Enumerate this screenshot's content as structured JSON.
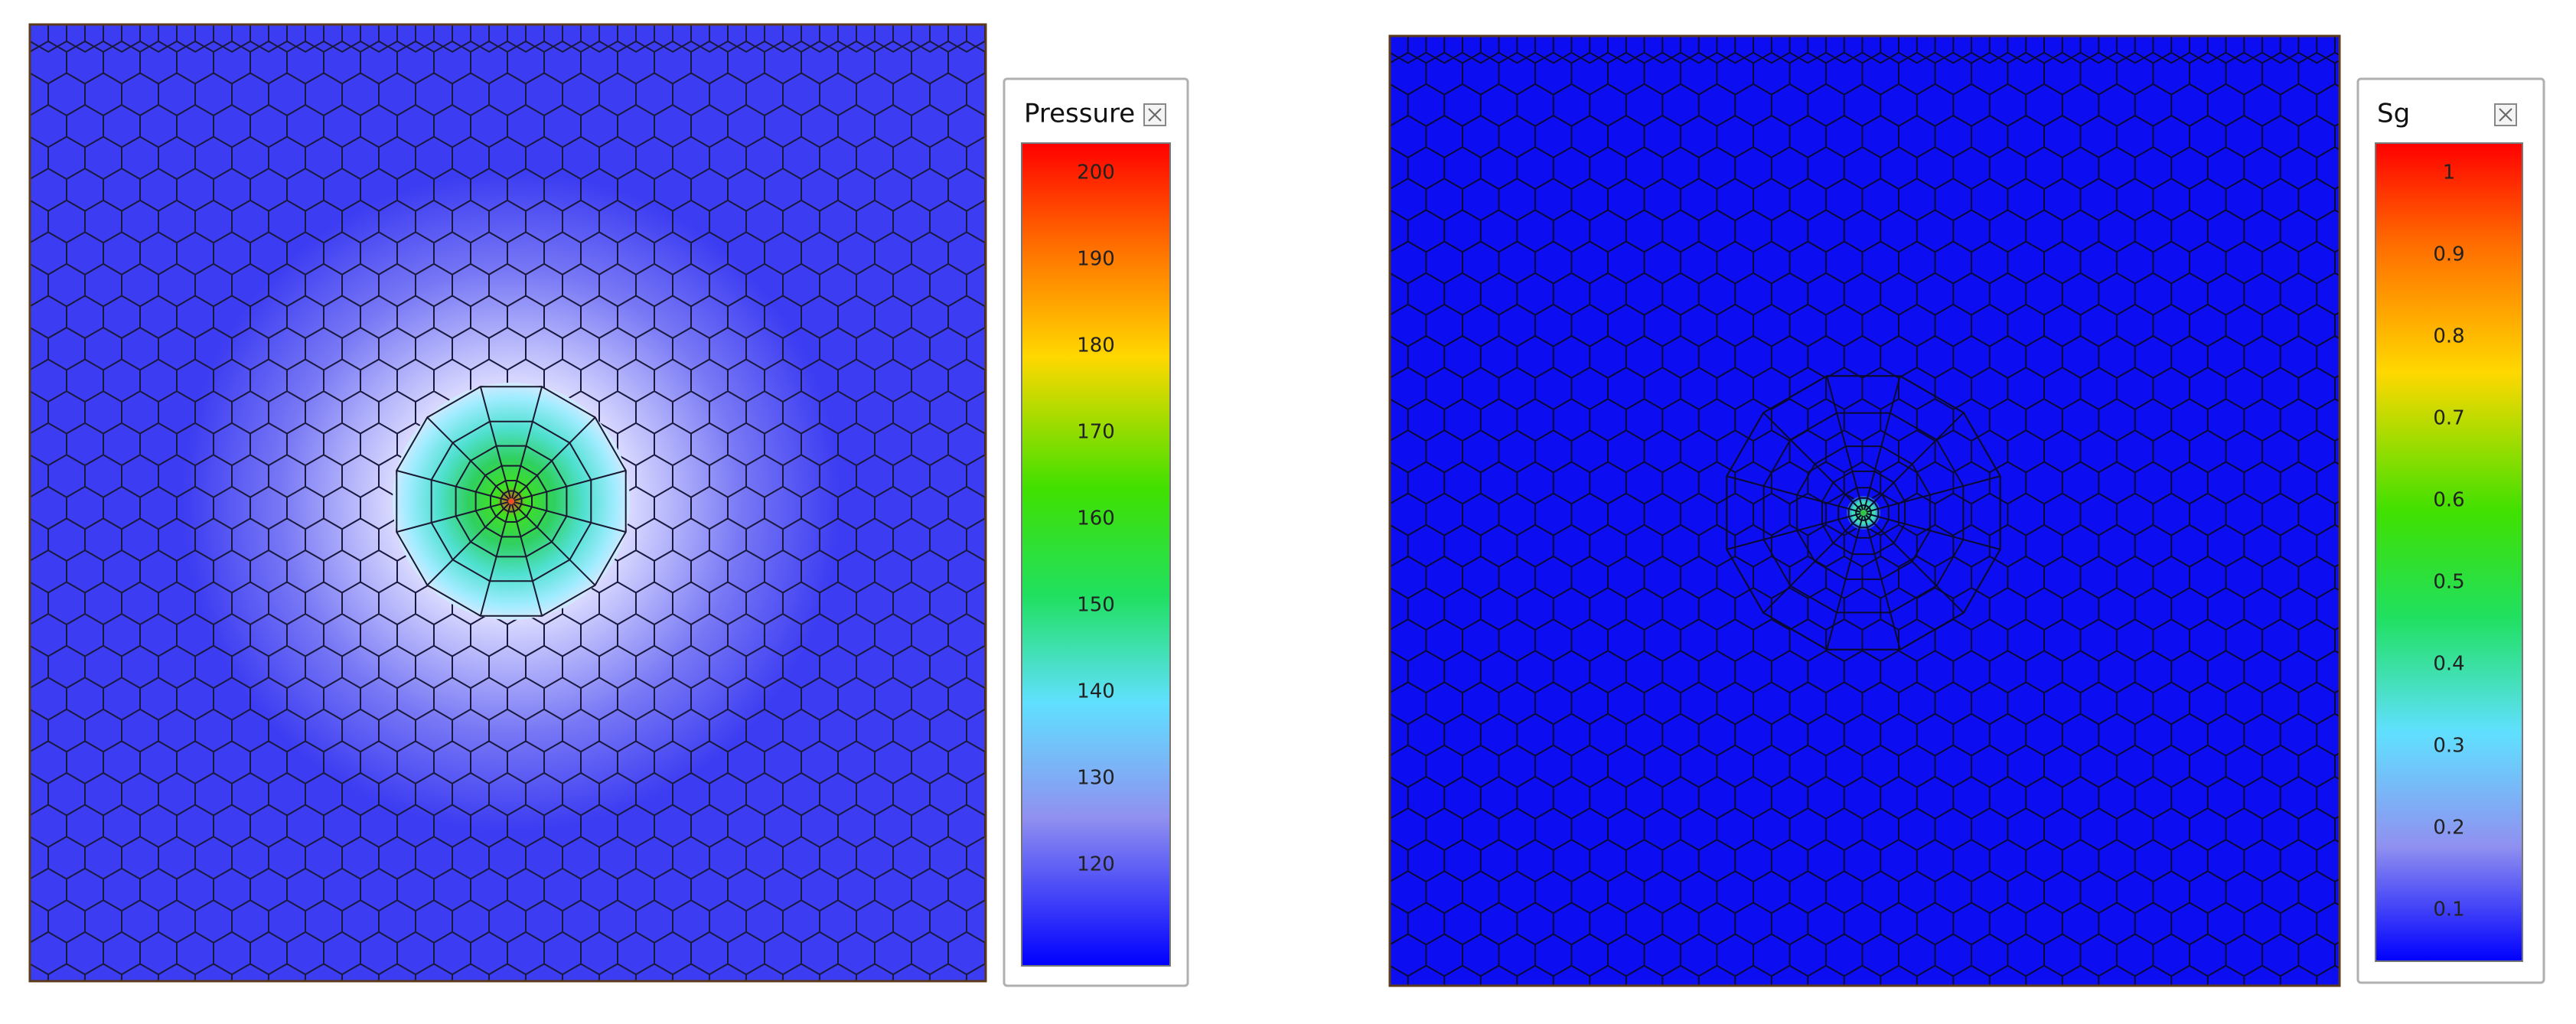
{
  "panels": [
    {
      "legend": {
        "title": "Pressure",
        "ticks": [
          200,
          190,
          180,
          170,
          160,
          150,
          140,
          130,
          120
        ]
      }
    },
    {
      "legend": {
        "title": "Sg",
        "ticks": [
          1,
          0.9,
          0.8,
          0.7,
          0.6,
          0.5,
          0.4,
          0.3,
          0.2,
          0.1
        ]
      }
    }
  ]
}
